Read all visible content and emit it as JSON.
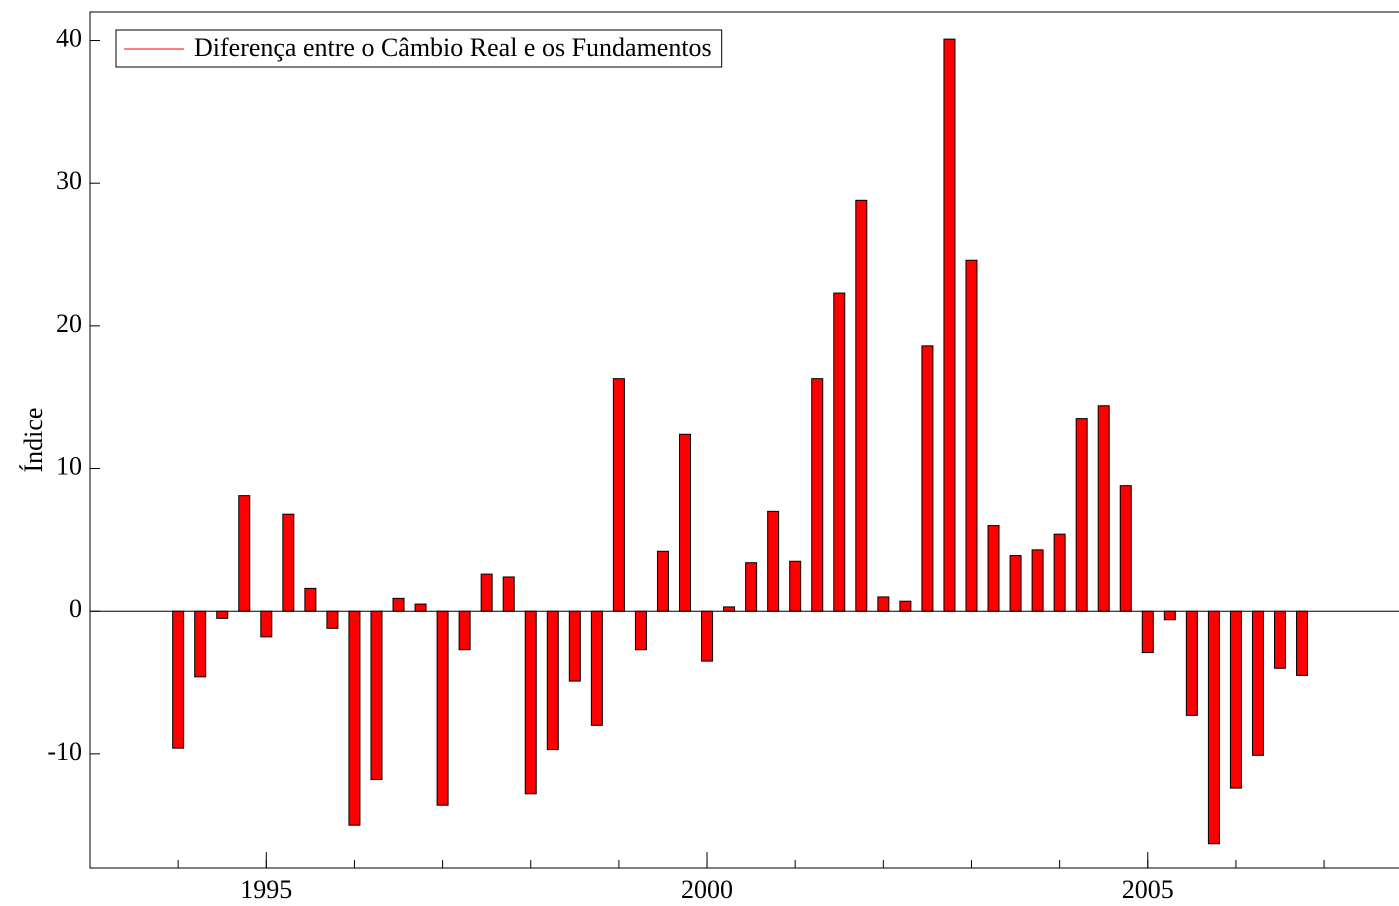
{
  "chart_data": {
    "type": "bar",
    "y_label": "Índice",
    "x": [
      1994,
      1994.25,
      1994.5,
      1994.75,
      1995,
      1995.25,
      1995.5,
      1995.75,
      1996,
      1996.25,
      1996.5,
      1996.75,
      1997,
      1997.25,
      1997.5,
      1997.75,
      1998,
      1998.25,
      1998.5,
      1998.75,
      1999,
      1999.25,
      1999.5,
      1999.75,
      2000,
      2000.25,
      2000.5,
      2000.75,
      2001,
      2001.25,
      2001.5,
      2001.75,
      2002,
      2002.25,
      2002.5,
      2002.75,
      2003,
      2003.25,
      2003.5,
      2003.75,
      2004,
      2004.25,
      2004.5,
      2004.75,
      2005,
      2005.25,
      2005.5,
      2005.75,
      2006,
      2006.25,
      2006.5,
      2006.75
    ],
    "series": [
      {
        "name": "Diferença entre o Câmbio Real e os Fundamentos",
        "color": "#ff0000",
        "values": [
          -9.6,
          -4.6,
          -0.5,
          8.1,
          -1.8,
          6.8,
          1.6,
          -1.2,
          -15.0,
          -11.8,
          0.9,
          0.5,
          -13.6,
          -2.7,
          2.6,
          2.4,
          -12.8,
          -9.7,
          -4.9,
          -8.0,
          16.3,
          -2.7,
          4.2,
          12.4,
          -3.5,
          0.3,
          3.4,
          7.0,
          3.5,
          16.3,
          22.3,
          28.8,
          1.0,
          0.7,
          18.6,
          40.1,
          24.6,
          6.0,
          3.9,
          4.3,
          5.4,
          13.5,
          14.4,
          8.8,
          -2.9,
          -0.6,
          -7.3,
          -16.3,
          -12.4,
          -10.1,
          -4.0,
          -4.5
        ]
      }
    ],
    "xlim": [
      1993,
      2007.85
    ],
    "xticks": [
      1995,
      2000,
      2005
    ],
    "ylim": [
      -18,
      42
    ],
    "yticks": [
      -10,
      0,
      10,
      20,
      30,
      40
    ],
    "legend": "top-left"
  }
}
